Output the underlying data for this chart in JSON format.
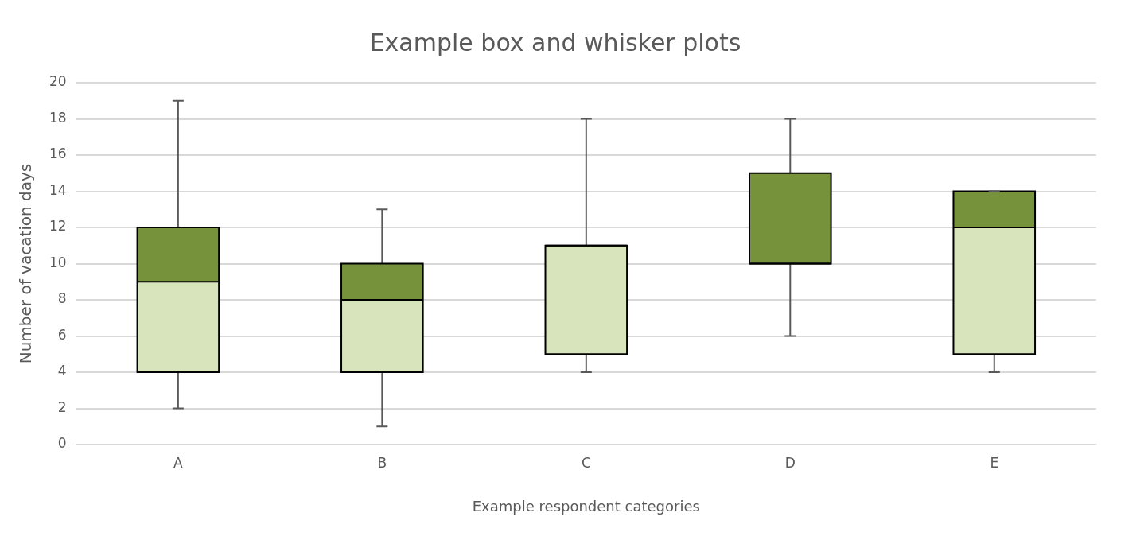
{
  "chart_data": {
    "type": "box",
    "title": "Example box and whisker plots",
    "xlabel": "Example respondent categories",
    "ylabel": "Number of vacation days",
    "categories": [
      "A",
      "B",
      "C",
      "D",
      "E"
    ],
    "series": [
      {
        "color": "#76933c",
        "colors": [
          "#d8e4bc",
          "#d8e4bc",
          "#d8e4bc",
          "#76933c",
          "#d8e4bc"
        ],
        "boxes": [
          {
            "low": 2,
            "q1": 4,
            "median": 9,
            "q3": 12,
            "high": 19
          },
          {
            "low": 1,
            "q1": 4,
            "median": 8,
            "q3": 10,
            "high": 13
          },
          {
            "low": 4,
            "q1": 5,
            "median": 11,
            "q3": 11,
            "high": 18
          },
          {
            "low": 6,
            "q1": 10,
            "median": 10,
            "q3": 15,
            "high": 18
          },
          {
            "low": 4,
            "q1": 5,
            "median": 12,
            "q3": 14,
            "high": 14
          }
        ]
      }
    ],
    "ylim": [
      0,
      20
    ],
    "yticks": [
      0,
      2,
      4,
      6,
      8,
      10,
      12,
      14,
      16,
      18,
      20
    ],
    "grid": "y",
    "legend": false
  }
}
